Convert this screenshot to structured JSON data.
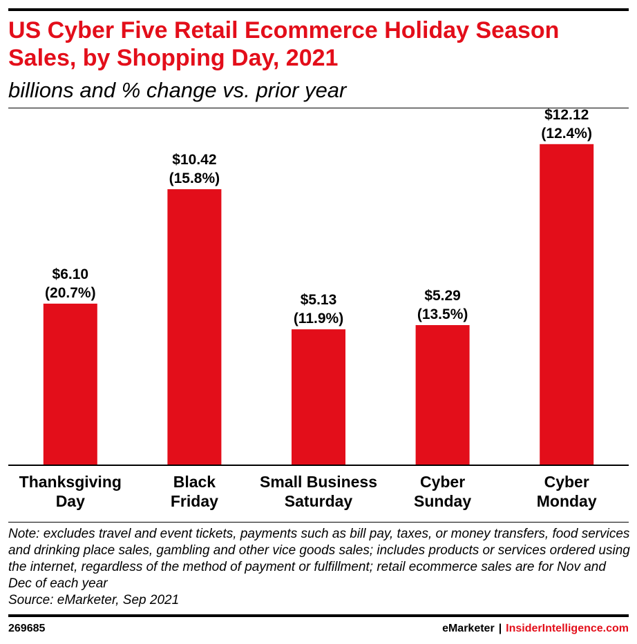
{
  "header": {
    "title": "US Cyber Five Retail Ecommerce Holiday Season Sales, by Shopping Day, 2021",
    "subtitle": "billions and % change vs. prior year"
  },
  "chart_data": {
    "type": "bar",
    "title": "US Cyber Five Retail Ecommerce Holiday Season Sales, by Shopping Day, 2021",
    "subtitle": "billions and % change vs. prior year",
    "categories": [
      [
        "Thanksgiving",
        "Day"
      ],
      [
        "Black",
        "Friday"
      ],
      [
        "Small Business",
        "Saturday"
      ],
      [
        "Cyber",
        "Sunday"
      ],
      [
        "Cyber",
        "Monday"
      ]
    ],
    "values": [
      6.1,
      10.42,
      5.13,
      5.29,
      12.12
    ],
    "value_labels": [
      "$6.10",
      "$10.42",
      "$5.13",
      "$5.29",
      "$12.12"
    ],
    "change_labels": [
      "(20.7%)",
      "(15.8%)",
      "(11.9%)",
      "(13.5%)",
      "(12.4%)"
    ],
    "percent_change": [
      20.7,
      15.8,
      11.9,
      13.5,
      12.4
    ],
    "ylim": [
      0,
      13.47
    ],
    "grid": false,
    "bar_color": "#e30e1a"
  },
  "footer": {
    "note": "Note: excludes travel and event tickets, payments such as bill pay, taxes, or money transfers, food services and drinking place sales, gambling and other vice goods sales; includes products or services ordered using the internet, regardless of the method of payment or fulfillment; retail ecommerce sales are for Nov and Dec of each year",
    "source": "Source: eMarketer, Sep 2021",
    "chart_id": "269685",
    "brand_primary": "eMarketer",
    "brand_separator": "|",
    "brand_secondary": "InsiderIntelligence.com"
  },
  "colors": {
    "accent": "#e30e1a",
    "text": "#000000"
  }
}
